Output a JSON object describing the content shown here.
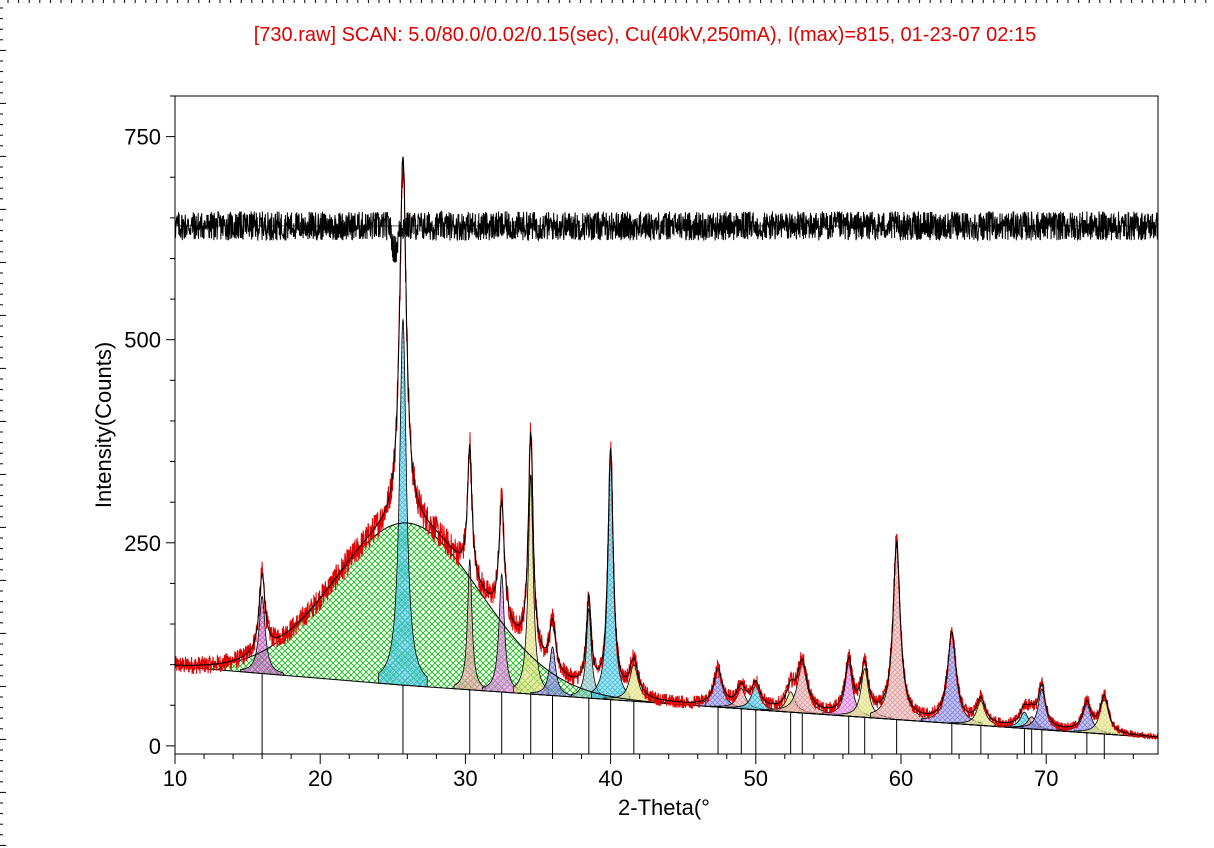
{
  "chart_data": {
    "type": "line",
    "title": "[730.raw] SCAN: 5.0/80.0/0.02/0.15(sec), Cu(40kV,250mA), I(max)=815, 01-23-07 02:15",
    "xlabel": "2-Theta(°",
    "ylabel": "Intensity(Counts)",
    "xlim": [
      10,
      77.7
    ],
    "ylim": [
      -10,
      800
    ],
    "x_ticks": [
      "10",
      "20",
      "30",
      "40",
      "50",
      "60",
      "70"
    ],
    "y_ticks": [
      "0",
      "250",
      "500",
      "750"
    ],
    "x_tick_values": [
      10,
      20,
      30,
      40,
      50,
      60,
      70
    ],
    "y_tick_values": [
      0,
      250,
      500,
      750
    ],
    "grid": false,
    "colors": {
      "observed": "#e00000",
      "fit": "#000000",
      "baseline_fill": "#00c000",
      "title": "#e00000"
    },
    "baseline": {
      "description_values": [
        [
          10,
          98
        ],
        [
          25.5,
          75
        ],
        [
          77.7,
          10
        ]
      ]
    },
    "amorphous_hump": {
      "center": 26.0,
      "height": 200,
      "width": 5.0
    },
    "residual_offset": 640,
    "peaks": [
      {
        "x": 16.0,
        "height": 95,
        "width": 0.25,
        "fill": "#c060c0"
      },
      {
        "x": 25.7,
        "height": 450,
        "width": 0.28,
        "fill": "#40c0e0"
      },
      {
        "x": 30.3,
        "height": 160,
        "width": 0.18,
        "fill": "#e0a0a0"
      },
      {
        "x": 32.5,
        "height": 145,
        "width": 0.22,
        "fill": "#e080e0"
      },
      {
        "x": 34.5,
        "height": 270,
        "width": 0.2,
        "fill": "#e0e080"
      },
      {
        "x": 36.0,
        "height": 60,
        "width": 0.25,
        "fill": "#8080e0"
      },
      {
        "x": 38.5,
        "height": 110,
        "width": 0.2,
        "fill": "#80c0c0"
      },
      {
        "x": 40.0,
        "height": 300,
        "width": 0.22,
        "fill": "#40c0e0"
      },
      {
        "x": 41.6,
        "height": 45,
        "width": 0.35,
        "fill": "#e0e080"
      },
      {
        "x": 47.4,
        "height": 45,
        "width": 0.35,
        "fill": "#8080e0"
      },
      {
        "x": 49.0,
        "height": 25,
        "width": 0.35,
        "fill": "#e0a0a0"
      },
      {
        "x": 50.0,
        "height": 30,
        "width": 0.35,
        "fill": "#40c0e0"
      },
      {
        "x": 52.4,
        "height": 25,
        "width": 0.35,
        "fill": "#e0e080"
      },
      {
        "x": 53.2,
        "height": 60,
        "width": 0.4,
        "fill": "#e0a0a0"
      },
      {
        "x": 56.4,
        "height": 65,
        "width": 0.3,
        "fill": "#e080e0"
      },
      {
        "x": 57.5,
        "height": 60,
        "width": 0.3,
        "fill": "#e0e080"
      },
      {
        "x": 59.7,
        "height": 215,
        "width": 0.3,
        "fill": "#e0a0a0"
      },
      {
        "x": 63.5,
        "height": 110,
        "width": 0.35,
        "fill": "#8080e0"
      },
      {
        "x": 65.5,
        "height": 30,
        "width": 0.35,
        "fill": "#e0e080"
      },
      {
        "x": 68.5,
        "height": 20,
        "width": 0.35,
        "fill": "#40c0e0"
      },
      {
        "x": 69.0,
        "height": 15,
        "width": 0.35,
        "fill": "#e0a0a0"
      },
      {
        "x": 69.7,
        "height": 50,
        "width": 0.3,
        "fill": "#8080e0"
      },
      {
        "x": 72.8,
        "height": 35,
        "width": 0.35,
        "fill": "#8080e0"
      },
      {
        "x": 74.0,
        "height": 45,
        "width": 0.35,
        "fill": "#e0e080"
      }
    ],
    "stick_positions": [
      16.0,
      25.7,
      30.3,
      32.5,
      34.5,
      36.0,
      38.5,
      40.0,
      41.6,
      47.4,
      49.0,
      50.0,
      52.4,
      53.2,
      56.4,
      57.5,
      59.7,
      63.5,
      65.5,
      68.5,
      69.0,
      69.7,
      72.8,
      74.0
    ]
  }
}
